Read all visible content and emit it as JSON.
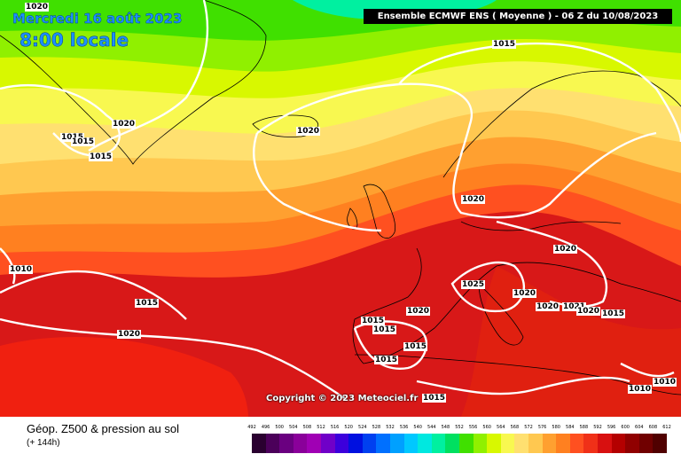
{
  "header": {
    "date": "Mercredi 16 août 2023",
    "hour": "8:00 locale",
    "model": "Ensemble ECMWF ENS  ( Moyenne )  -  06 Z du 10/08/2023"
  },
  "map": {
    "isobar_labels": [
      "1020",
      "1015",
      "1020",
      "1015",
      "1015",
      "1015",
      "1020",
      "1020",
      "1020",
      "1010",
      "1015",
      "1020",
      "1025",
      "1020",
      "1015",
      "1015",
      "1020",
      "1015",
      "1020",
      "1021",
      "1020",
      "1015",
      "1015",
      "1015",
      "1010",
      "1010"
    ],
    "copyright": "Copyright © 2023 Meteociel.fr"
  },
  "footer": {
    "parameter": "Géop. Z500 & pression au sol",
    "lead_time": "(+ 144h)"
  },
  "scale": {
    "ticks": [
      "492",
      "496",
      "500",
      "504",
      "508",
      "512",
      "516",
      "520",
      "524",
      "528",
      "532",
      "536",
      "540",
      "544",
      "548",
      "552",
      "556",
      "560",
      "564",
      "568",
      "572",
      "576",
      "580",
      "584",
      "588",
      "592",
      "596",
      "600",
      "604",
      "608",
      "612"
    ],
    "colors": [
      "#2a0030",
      "#4b005a",
      "#6a0080",
      "#8a009a",
      "#a000b4",
      "#7000c8",
      "#3c00dc",
      "#0010e0",
      "#0040f0",
      "#0070ff",
      "#00a0ff",
      "#00c8ff",
      "#00e8e0",
      "#00f0a0",
      "#00e060",
      "#40e000",
      "#90f000",
      "#d8f800",
      "#f8f850",
      "#ffe070",
      "#ffc850",
      "#ffa030",
      "#ff8020",
      "#ff5020",
      "#f03018",
      "#d81010",
      "#b40000",
      "#900000",
      "#700000",
      "#500000"
    ]
  }
}
